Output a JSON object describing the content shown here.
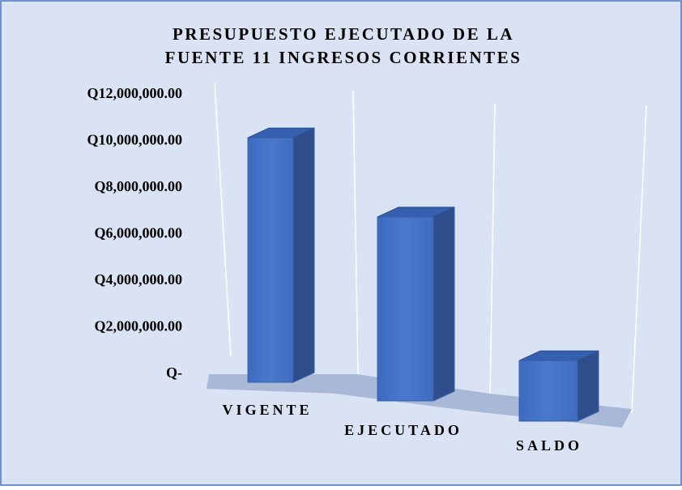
{
  "chart_data": {
    "type": "bar3d",
    "title": [
      "PRESUPUESTO EJECUTADO DE LA",
      "FUENTE 11 INGRESOS CORRIENTES"
    ],
    "categories": [
      "VIGENTE",
      "EJECUTADO",
      "SALDO"
    ],
    "values": [
      10500000,
      7900000,
      2600000
    ],
    "color": "#4472c4",
    "ylim": [
      0,
      12000000
    ],
    "yticks": [
      {
        "value": 0,
        "label": "Q-"
      },
      {
        "value": 2000000,
        "label": "Q2,000,000.00"
      },
      {
        "value": 4000000,
        "label": "Q4,000,000.00"
      },
      {
        "value": 6000000,
        "label": "Q6,000,000.00"
      },
      {
        "value": 8000000,
        "label": "Q8,000,000.00"
      },
      {
        "value": 10000000,
        "label": "Q10,000,000.00"
      },
      {
        "value": 12000000,
        "label": "Q12,000,000.00"
      }
    ]
  }
}
